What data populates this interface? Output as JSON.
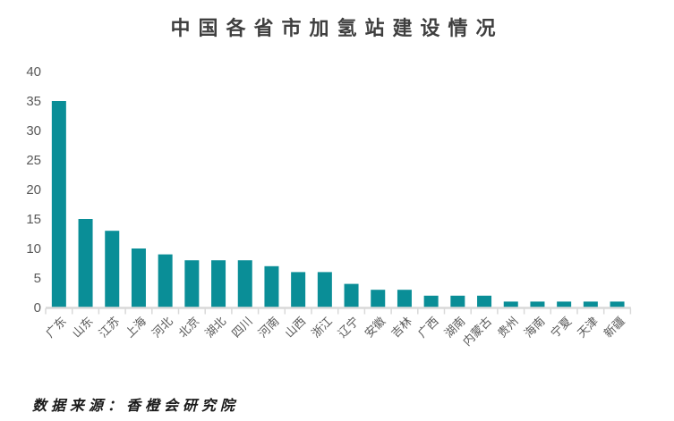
{
  "chart_data": {
    "type": "bar",
    "title": "中国各省市加氢站建设情况",
    "source_note": "数据来源：香橙会研究院",
    "categories": [
      "广东",
      "山东",
      "江苏",
      "上海",
      "河北",
      "北京",
      "湖北",
      "四川",
      "河南",
      "山西",
      "浙江",
      "辽宁",
      "安徽",
      "吉林",
      "广西",
      "湖南",
      "内蒙古",
      "贵州",
      "海南",
      "宁夏",
      "天津",
      "新疆"
    ],
    "values": [
      35,
      15,
      13,
      10,
      9,
      8,
      8,
      8,
      7,
      6,
      6,
      4,
      3,
      3,
      2,
      2,
      2,
      1,
      1,
      1,
      1,
      1
    ],
    "xlabel": "",
    "ylabel": "",
    "ylim": [
      0,
      40
    ],
    "yticks": [
      0,
      5,
      10,
      15,
      20,
      25,
      30,
      35,
      40
    ],
    "grid": "off",
    "legend": "none",
    "colors": {
      "bar": "#0A8E97",
      "axis_line": "#D9D9D9",
      "tick_label": "#595959",
      "title_text": "#3F3F3F",
      "source_text": "#1A1A1A"
    }
  }
}
